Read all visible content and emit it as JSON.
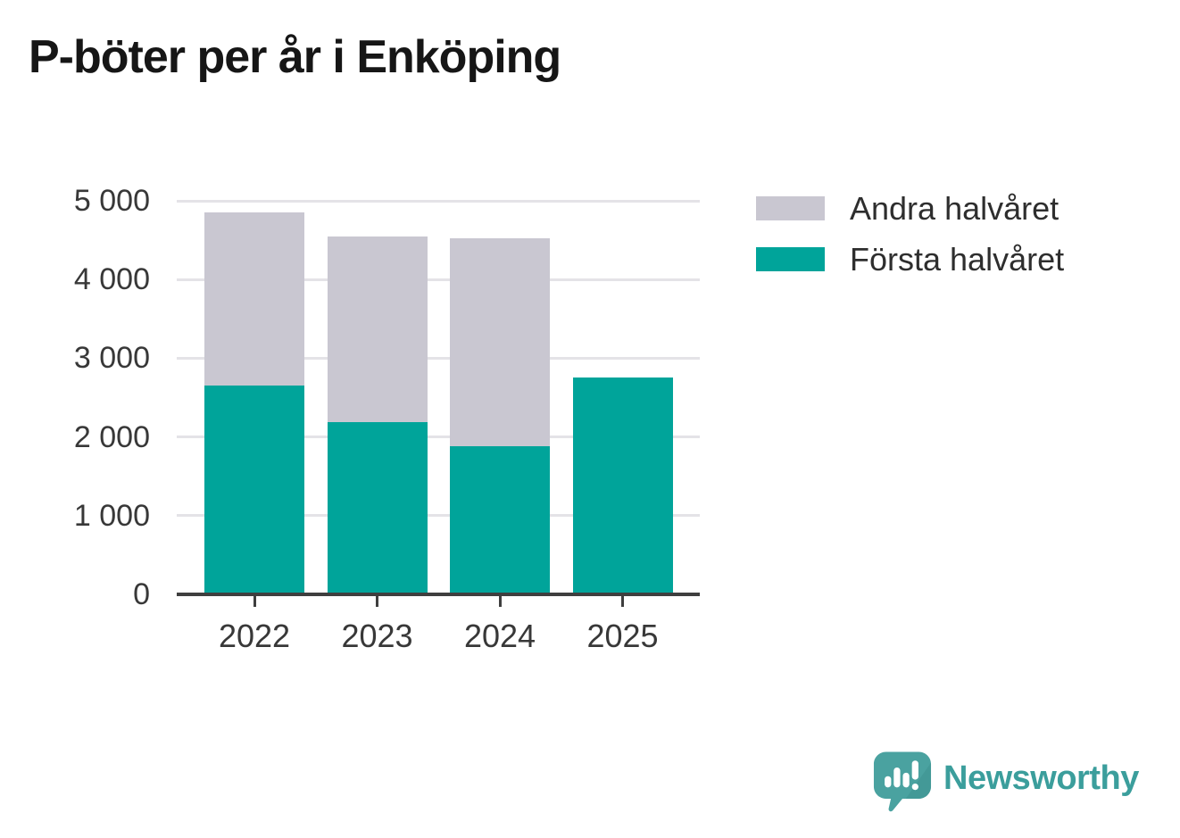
{
  "chart": {
    "title": "P-böter per år i Enköping",
    "title_color": "#161616"
  },
  "chart_data": {
    "type": "bar",
    "stacked": true,
    "title": "P-böter per år i Enköping",
    "categories": [
      "2022",
      "2023",
      "2024",
      "2025"
    ],
    "series": [
      {
        "name": "Första halvåret",
        "color": "#00a49a",
        "values": [
          2650,
          2190,
          1880,
          2760
        ]
      },
      {
        "name": "Andra halvåret",
        "color": "#c9c7d1",
        "values": [
          2200,
          2360,
          2640,
          null
        ]
      }
    ],
    "totals": [
      4850,
      4550,
      4520,
      2760
    ],
    "xlabel": "",
    "ylabel": "",
    "ylim": [
      0,
      5000
    ],
    "yticks": [
      0,
      1000,
      2000,
      3000,
      4000,
      5000
    ],
    "ytick_labels": [
      "0",
      "1 000",
      "2 000",
      "3 000",
      "4 000",
      "5 000"
    ],
    "grid": true,
    "gridline_color": "#e4e3e7",
    "axis_color": "#3f3f3f",
    "tick_label_color": "#383838",
    "legend_position": "top-right"
  },
  "legend": {
    "items": [
      {
        "label": "Andra halvåret",
        "color": "#c9c7d1"
      },
      {
        "label": "Första halvåret",
        "color": "#00a49a"
      }
    ]
  },
  "branding": {
    "logo_text": "Newsworthy",
    "logo_text_color": "#3b9e9c",
    "logo_icon": "newsworthy-bubble-chart-icon",
    "logo_icon_color": "#4aa2a0"
  }
}
